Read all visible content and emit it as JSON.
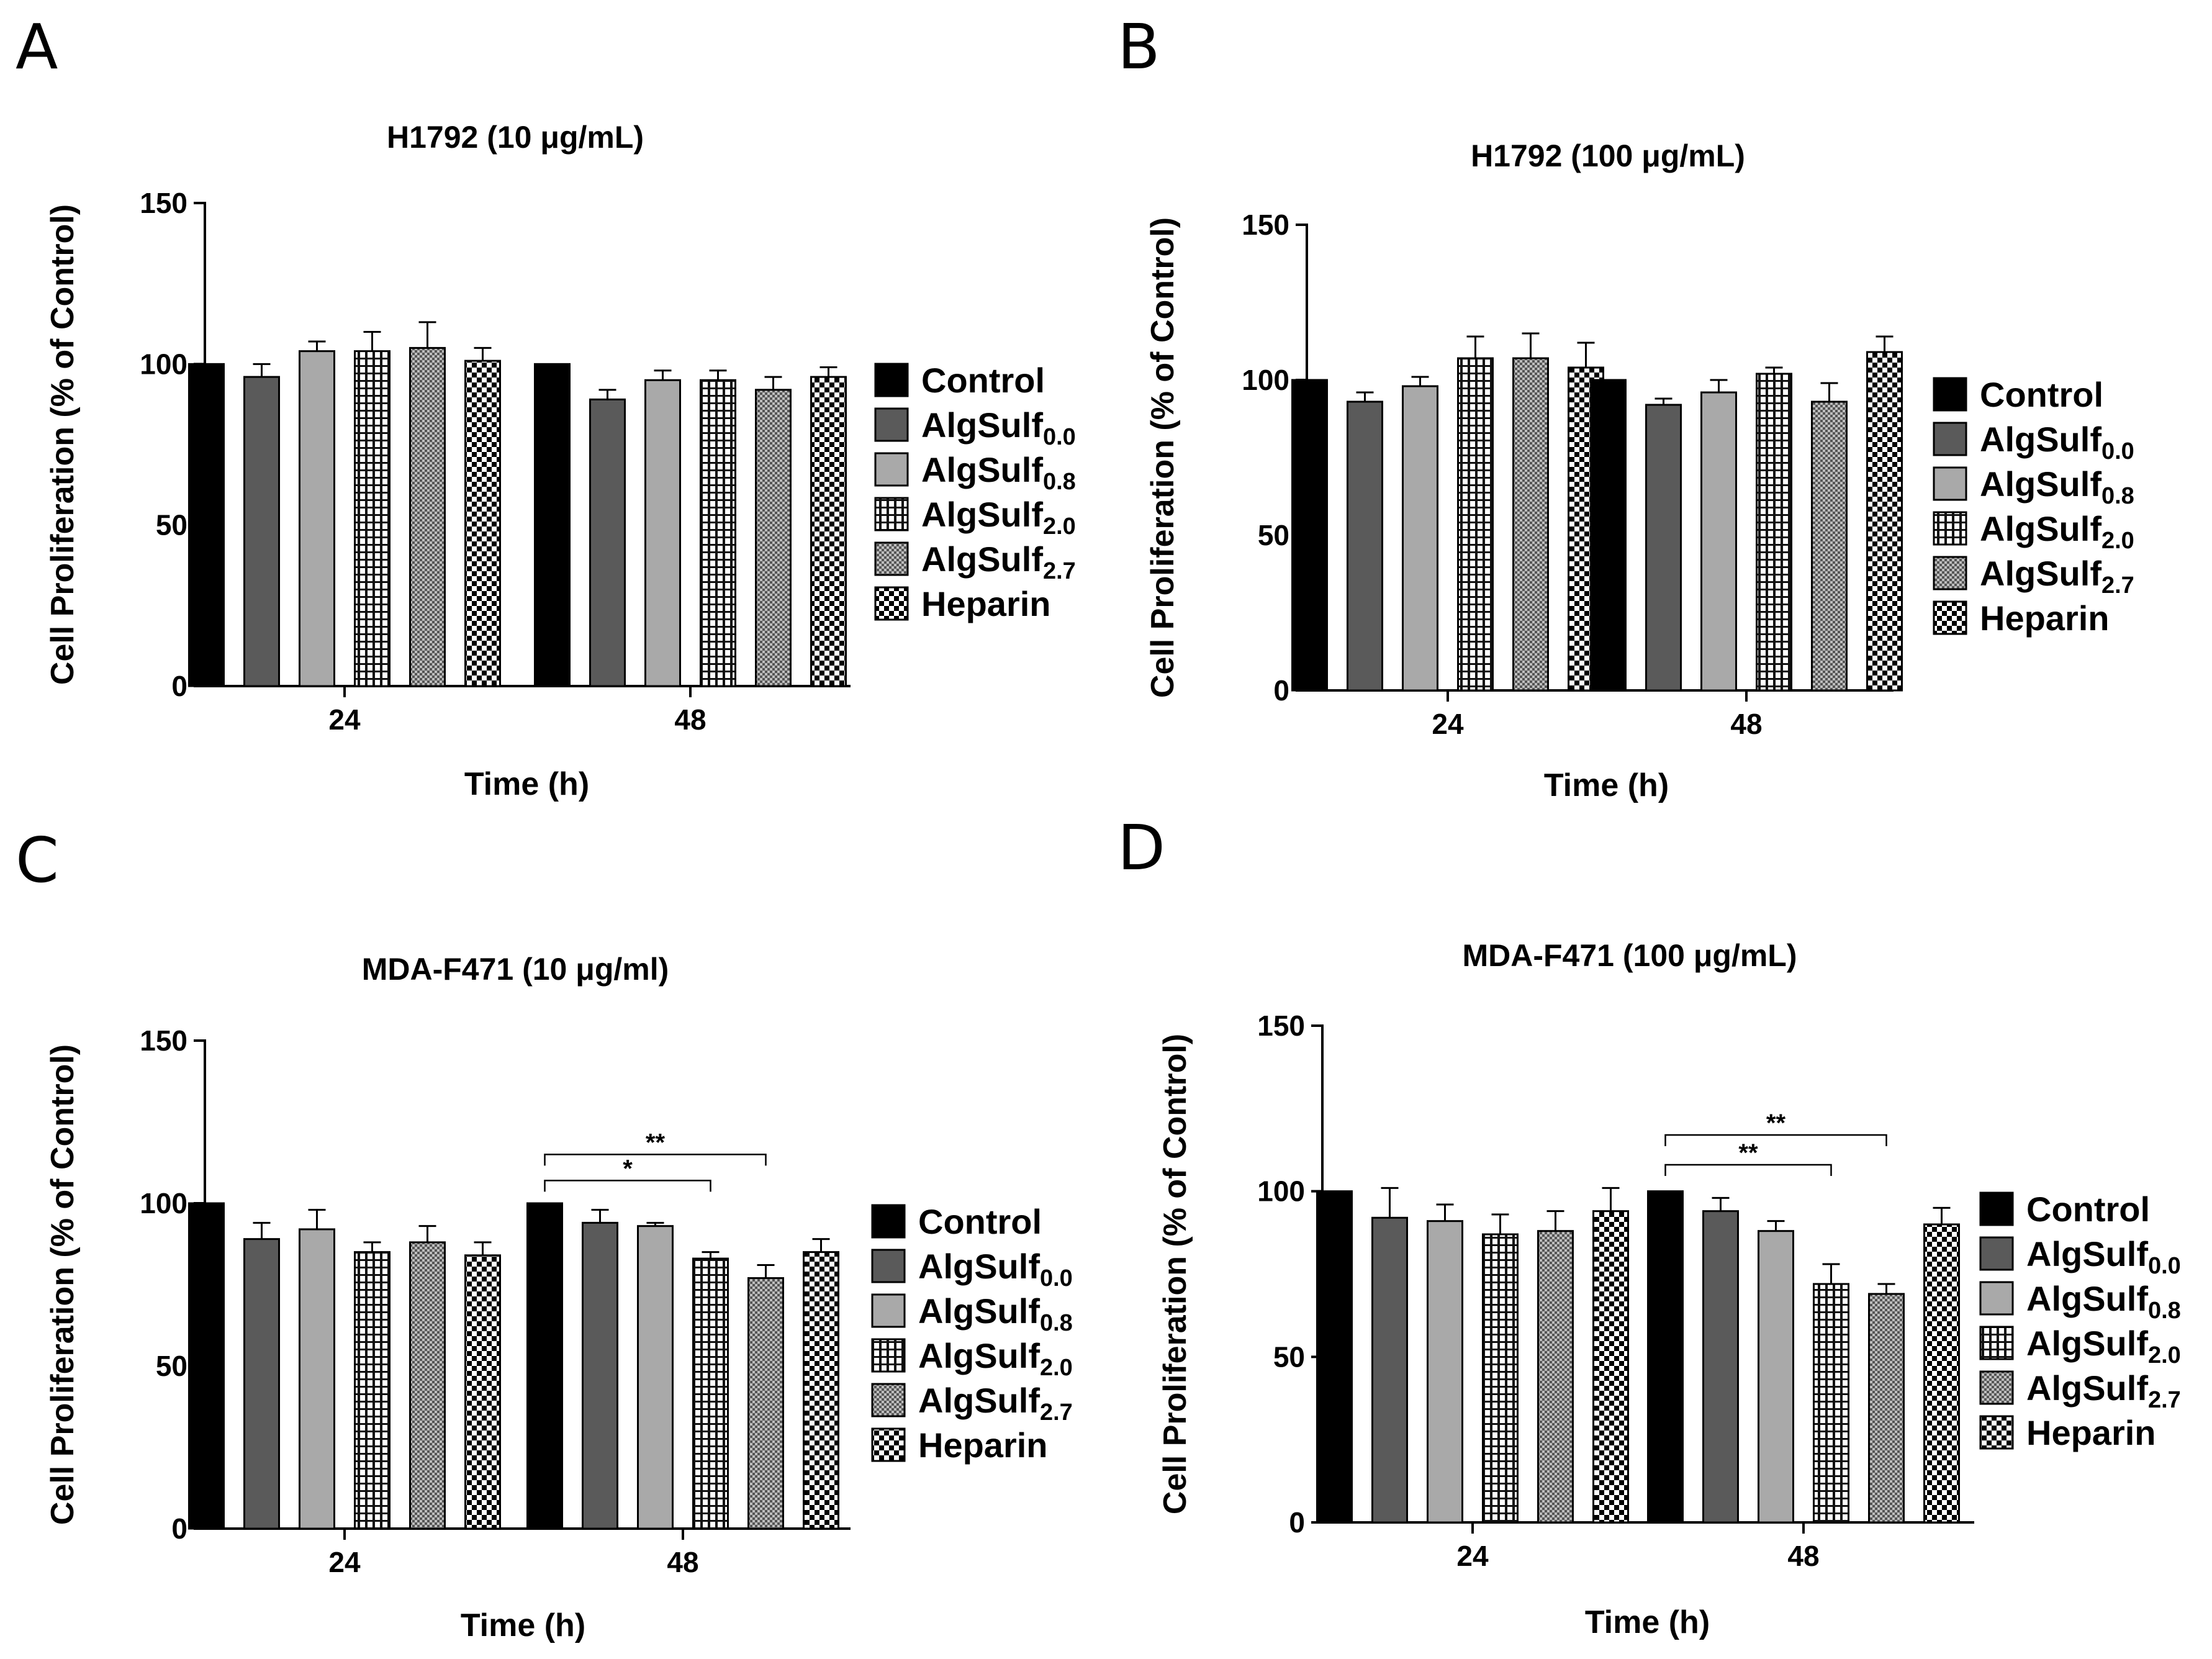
{
  "series_styles": [
    {
      "name": "Control",
      "pattern": "solid-black",
      "color": "#000000"
    },
    {
      "name": "AlgSulf0.0",
      "pattern": "solid-dark",
      "color": "#555555"
    },
    {
      "name": "AlgSulf0.8",
      "pattern": "solid-light",
      "color": "#a8a8a8"
    },
    {
      "name": "AlgSulf2.0",
      "pattern": "grid",
      "color": "#222222"
    },
    {
      "name": "AlgSulf2.7",
      "pattern": "fine-check",
      "color": "#777777"
    },
    {
      "name": "Heparin",
      "pattern": "checker",
      "color": "#000000"
    }
  ],
  "legend": [
    {
      "main": "Control",
      "sub": ""
    },
    {
      "main": "AlgSulf",
      "sub": "0.0"
    },
    {
      "main": "AlgSulf",
      "sub": "0.8"
    },
    {
      "main": "AlgSulf",
      "sub": "2.0"
    },
    {
      "main": "AlgSulf",
      "sub": "2.7"
    },
    {
      "main": "Heparin",
      "sub": ""
    }
  ],
  "chart_data": [
    {
      "panel": "A",
      "type": "bar",
      "title": "H1792 (10 μg/mL)",
      "xlabel": "Time (h)",
      "ylabel": "Cell Proliferation (% of Control)",
      "categories": [
        "24",
        "48"
      ],
      "ylim": [
        0,
        150
      ],
      "yticks": [
        0,
        50,
        100,
        150
      ],
      "series": [
        {
          "name": "Control",
          "values": [
            100,
            100
          ],
          "errors": [
            0,
            0
          ]
        },
        {
          "name": "AlgSulf0.0",
          "values": [
            96,
            89
          ],
          "errors": [
            4,
            3
          ]
        },
        {
          "name": "AlgSulf0.8",
          "values": [
            104,
            95
          ],
          "errors": [
            3,
            3
          ]
        },
        {
          "name": "AlgSulf2.0",
          "values": [
            104,
            95
          ],
          "errors": [
            6,
            3
          ]
        },
        {
          "name": "AlgSulf2.7",
          "values": [
            105,
            92
          ],
          "errors": [
            8,
            4
          ]
        },
        {
          "name": "Heparin",
          "values": [
            101,
            96
          ],
          "errors": [
            4,
            3
          ]
        }
      ],
      "significance": []
    },
    {
      "panel": "B",
      "type": "bar",
      "title": "H1792 (100 μg/mL)",
      "xlabel": "Time (h)",
      "ylabel": "Cell Proliferation (% of Control)",
      "categories": [
        "24",
        "48"
      ],
      "ylim": [
        0,
        150
      ],
      "yticks": [
        0,
        50,
        100,
        150
      ],
      "series": [
        {
          "name": "Control",
          "values": [
            100,
            100
          ],
          "errors": [
            0,
            0
          ]
        },
        {
          "name": "AlgSulf0.0",
          "values": [
            93,
            92
          ],
          "errors": [
            3,
            2
          ]
        },
        {
          "name": "AlgSulf0.8",
          "values": [
            98,
            96
          ],
          "errors": [
            3,
            4
          ]
        },
        {
          "name": "AlgSulf2.0",
          "values": [
            107,
            102
          ],
          "errors": [
            7,
            2
          ]
        },
        {
          "name": "AlgSulf2.7",
          "values": [
            107,
            93
          ],
          "errors": [
            8,
            6
          ]
        },
        {
          "name": "Heparin",
          "values": [
            104,
            109
          ],
          "errors": [
            8,
            5
          ]
        }
      ],
      "significance": []
    },
    {
      "panel": "C",
      "type": "bar",
      "title": "MDA-F471 (10 μg/ml)",
      "xlabel": "Time (h)",
      "ylabel": "Cell Proliferation (% of Control)",
      "categories": [
        "24",
        "48"
      ],
      "ylim": [
        0,
        150
      ],
      "yticks": [
        0,
        50,
        100,
        150
      ],
      "series": [
        {
          "name": "Control",
          "values": [
            100,
            100
          ],
          "errors": [
            0,
            0
          ]
        },
        {
          "name": "AlgSulf0.0",
          "values": [
            89,
            94
          ],
          "errors": [
            5,
            4
          ]
        },
        {
          "name": "AlgSulf0.8",
          "values": [
            92,
            93
          ],
          "errors": [
            6,
            1
          ]
        },
        {
          "name": "AlgSulf2.0",
          "values": [
            85,
            83
          ],
          "errors": [
            3,
            2
          ]
        },
        {
          "name": "AlgSulf2.7",
          "values": [
            88,
            77
          ],
          "errors": [
            5,
            4
          ]
        },
        {
          "name": "Heparin",
          "values": [
            84,
            85
          ],
          "errors": [
            4,
            4
          ]
        }
      ],
      "significance": [
        {
          "label": "**",
          "category": "48",
          "from": "Control",
          "to": "AlgSulf2.7",
          "level": 115
        },
        {
          "label": "*",
          "category": "48",
          "from": "Control",
          "to": "AlgSulf2.0",
          "level": 107
        }
      ]
    },
    {
      "panel": "D",
      "type": "bar",
      "title": "MDA-F471 (100 μg/mL)",
      "xlabel": "Time (h)",
      "ylabel": "Cell Proliferation (% of Control)",
      "categories": [
        "24",
        "48"
      ],
      "ylim": [
        0,
        150
      ],
      "yticks": [
        0,
        50,
        100,
        150
      ],
      "series": [
        {
          "name": "Control",
          "values": [
            100,
            100
          ],
          "errors": [
            0,
            0
          ]
        },
        {
          "name": "AlgSulf0.0",
          "values": [
            92,
            94
          ],
          "errors": [
            9,
            4
          ]
        },
        {
          "name": "AlgSulf0.8",
          "values": [
            91,
            88
          ],
          "errors": [
            5,
            3
          ]
        },
        {
          "name": "AlgSulf2.0",
          "values": [
            87,
            72
          ],
          "errors": [
            6,
            6
          ]
        },
        {
          "name": "AlgSulf2.7",
          "values": [
            88,
            69
          ],
          "errors": [
            6,
            3
          ]
        },
        {
          "name": "Heparin",
          "values": [
            94,
            90
          ],
          "errors": [
            7,
            5
          ]
        }
      ],
      "significance": [
        {
          "label": "**",
          "category": "48",
          "from": "Control",
          "to": "AlgSulf2.7",
          "level": 117
        },
        {
          "label": "**",
          "category": "48",
          "from": "Control",
          "to": "AlgSulf2.0",
          "level": 108
        }
      ]
    }
  ]
}
